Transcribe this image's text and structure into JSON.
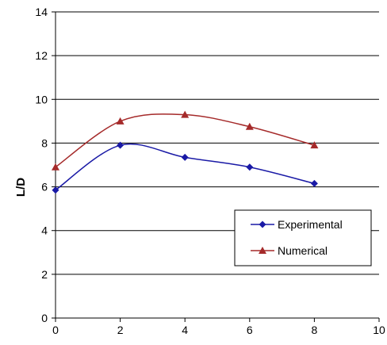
{
  "chart_data": {
    "type": "line",
    "title": "",
    "xlabel": "",
    "ylabel": "L/D",
    "xlim": [
      0,
      10
    ],
    "ylim": [
      0,
      14
    ],
    "x_ticks": [
      "0",
      "2",
      "4",
      "6",
      "8",
      "10"
    ],
    "y_ticks": [
      "0",
      "2",
      "4",
      "6",
      "8",
      "10",
      "12",
      "14"
    ],
    "grid": "horizontal major gridlines",
    "legend_position": "lower-right",
    "series": [
      {
        "name": "Experimental",
        "color": "#1a1aa6",
        "marker": "diamond",
        "x": [
          0,
          2,
          4,
          6,
          8
        ],
        "y": [
          5.85,
          7.9,
          7.35,
          6.9,
          6.15
        ]
      },
      {
        "name": "Numerical",
        "color": "#a52a2a",
        "marker": "triangle",
        "x": [
          0,
          2,
          4,
          6,
          8
        ],
        "y": [
          6.9,
          9.0,
          9.3,
          8.75,
          7.9
        ]
      }
    ]
  }
}
